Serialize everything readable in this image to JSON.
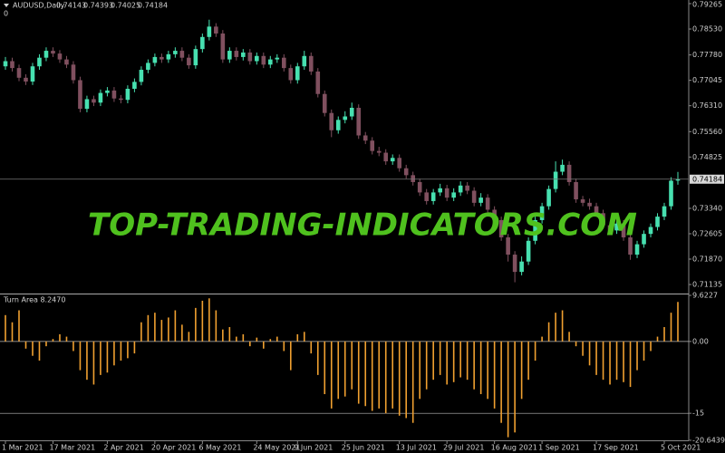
{
  "chart_data": [
    {
      "type": "candlestick",
      "title": "AUDUSD,Daily",
      "sub_label": "0",
      "watermark": "TOP-TRADING-INDICATORS.COM",
      "current_price": 0.74184,
      "ylim": [
        0.709,
        0.7937
      ],
      "yticks": [
        0.79265,
        {
          "value": 0.7853,
          "label": "0.78530"
        },
        {
          "value": 0.7778,
          "label": "0.77780"
        },
        0.77045,
        {
          "value": 0.7631,
          "label": "0.76310"
        },
        {
          "value": 0.7556,
          "label": "0.75560"
        },
        0.74825,
        {
          "value": 0.7334,
          "label": "0.73340"
        },
        0.72605,
        {
          "value": 0.7187,
          "label": "0.71870"
        },
        0.71135
      ],
      "series": [
        {
          "up_color": "#47e0b0",
          "down_color": "#80505f",
          "values": [
            [
              0.7745,
              0.7772,
              0.7735,
              0.776
            ],
            [
              0.776,
              0.777,
              0.773,
              0.774
            ],
            [
              0.774,
              0.775,
              0.7702,
              0.7712
            ],
            [
              0.7712,
              0.7722,
              0.7691,
              0.7701
            ],
            [
              0.7701,
              0.7755,
              0.7691,
              0.7745
            ],
            [
              0.7745,
              0.778,
              0.7735,
              0.777
            ],
            [
              0.777,
              0.78,
              0.776,
              0.779
            ],
            [
              0.779,
              0.78,
              0.7772,
              0.7782
            ],
            [
              0.7782,
              0.7792,
              0.7755,
              0.7765
            ],
            [
              0.7765,
              0.7775,
              0.774,
              0.775
            ],
            [
              0.775,
              0.776,
              0.7695,
              0.7705
            ],
            [
              0.7705,
              0.7715,
              0.7612,
              0.7622
            ],
            [
              0.7622,
              0.766,
              0.7612,
              0.765
            ],
            [
              0.765,
              0.766,
              0.763,
              0.764
            ],
            [
              0.764,
              0.7678,
              0.763,
              0.7668
            ],
            [
              0.7668,
              0.7685,
              0.7658,
              0.7675
            ],
            [
              0.7675,
              0.7685,
              0.7642,
              0.7652
            ],
            [
              0.7652,
              0.7662,
              0.7638,
              0.7648
            ],
            [
              0.7648,
              0.769,
              0.7638,
              0.768
            ],
            [
              0.768,
              0.771,
              0.767,
              0.77
            ],
            [
              0.77,
              0.7745,
              0.769,
              0.7735
            ],
            [
              0.7735,
              0.7765,
              0.7725,
              0.7755
            ],
            [
              0.7755,
              0.7782,
              0.7745,
              0.7772
            ],
            [
              0.7772,
              0.7782,
              0.7755,
              0.7765
            ],
            [
              0.7765,
              0.779,
              0.7755,
              0.778
            ],
            [
              0.778,
              0.78,
              0.777,
              0.779
            ],
            [
              0.779,
              0.78,
              0.776,
              0.777
            ],
            [
              0.777,
              0.778,
              0.7738,
              0.7748
            ],
            [
              0.7748,
              0.7805,
              0.7738,
              0.7795
            ],
            [
              0.7795,
              0.784,
              0.7785,
              0.783
            ],
            [
              0.783,
              0.788,
              0.782,
              0.786
            ],
            [
              0.786,
              0.787,
              0.783,
              0.784
            ],
            [
              0.784,
              0.785,
              0.7755,
              0.7765
            ],
            [
              0.7765,
              0.78,
              0.7755,
              0.779
            ],
            [
              0.779,
              0.78,
              0.7762,
              0.7772
            ],
            [
              0.7772,
              0.7795,
              0.7762,
              0.7785
            ],
            [
              0.7785,
              0.7795,
              0.775,
              0.776
            ],
            [
              0.776,
              0.7785,
              0.775,
              0.7775
            ],
            [
              0.7775,
              0.7785,
              0.774,
              0.775
            ],
            [
              0.775,
              0.7775,
              0.774,
              0.7765
            ],
            [
              0.7765,
              0.778,
              0.7755,
              0.777
            ],
            [
              0.777,
              0.778,
              0.773,
              0.774
            ],
            [
              0.774,
              0.775,
              0.7695,
              0.7705
            ],
            [
              0.7705,
              0.7755,
              0.7695,
              0.7745
            ],
            [
              0.7745,
              0.779,
              0.7735,
              0.7775
            ],
            [
              0.7775,
              0.7785,
              0.772,
              0.773
            ],
            [
              0.773,
              0.774,
              0.7655,
              0.7665
            ],
            [
              0.7665,
              0.7675,
              0.76,
              0.761
            ],
            [
              0.761,
              0.762,
              0.754,
              0.756
            ],
            [
              0.756,
              0.76,
              0.755,
              0.759
            ],
            [
              0.759,
              0.7615,
              0.758,
              0.76
            ],
            [
              0.76,
              0.764,
              0.759,
              0.7625
            ],
            [
              0.7625,
              0.7635,
              0.7535,
              0.7545
            ],
            [
              0.7545,
              0.7555,
              0.752,
              0.753
            ],
            [
              0.753,
              0.754,
              0.749,
              0.75
            ],
            [
              0.75,
              0.7512,
              0.7485,
              0.7495
            ],
            [
              0.7495,
              0.7505,
              0.746,
              0.747
            ],
            [
              0.747,
              0.749,
              0.746,
              0.748
            ],
            [
              0.748,
              0.749,
              0.744,
              0.745
            ],
            [
              0.745,
              0.746,
              0.742,
              0.743
            ],
            [
              0.743,
              0.744,
              0.74,
              0.741
            ],
            [
              0.741,
              0.742,
              0.737,
              0.738
            ],
            [
              0.738,
              0.739,
              0.7345,
              0.7355
            ],
            [
              0.7355,
              0.739,
              0.7345,
              0.738
            ],
            [
              0.738,
              0.7405,
              0.737,
              0.7392
            ],
            [
              0.7392,
              0.7402,
              0.7355,
              0.7365
            ],
            [
              0.7365,
              0.7392,
              0.7355,
              0.738
            ],
            [
              0.738,
              0.7412,
              0.737,
              0.74
            ],
            [
              0.74,
              0.741,
              0.7375,
              0.7385
            ],
            [
              0.7385,
              0.7395,
              0.734,
              0.735
            ],
            [
              0.735,
              0.7378,
              0.734,
              0.7365
            ],
            [
              0.7365,
              0.7375,
              0.732,
              0.733
            ],
            [
              0.733,
              0.734,
              0.729,
              0.73
            ],
            [
              0.73,
              0.731,
              0.724,
              0.725
            ],
            [
              0.725,
              0.726,
              0.718,
              0.72
            ],
            [
              0.72,
              0.721,
              0.712,
              0.715
            ],
            [
              0.715,
              0.7195,
              0.714,
              0.718
            ],
            [
              0.718,
              0.725,
              0.717,
              0.724
            ],
            [
              0.724,
              0.731,
              0.723,
              0.73
            ],
            [
              0.73,
              0.735,
              0.729,
              0.734
            ],
            [
              0.734,
              0.74,
              0.733,
              0.739
            ],
            [
              0.739,
              0.747,
              0.738,
              0.744
            ],
            [
              0.744,
              0.7475,
              0.743,
              0.746
            ],
            [
              0.746,
              0.747,
              0.74,
              0.741
            ],
            [
              0.741,
              0.742,
              0.735,
              0.736
            ],
            [
              0.736,
              0.737,
              0.734,
              0.735
            ],
            [
              0.735,
              0.7362,
              0.733,
              0.734
            ],
            [
              0.734,
              0.735,
              0.731,
              0.732
            ],
            [
              0.732,
              0.733,
              0.7275,
              0.7285
            ],
            [
              0.7285,
              0.7295,
              0.726,
              0.727
            ],
            [
              0.727,
              0.73,
              0.726,
              0.729
            ],
            [
              0.729,
              0.73,
              0.724,
              0.725
            ],
            [
              0.725,
              0.726,
              0.7185,
              0.72
            ],
            [
              0.72,
              0.724,
              0.719,
              0.723
            ],
            [
              0.723,
              0.727,
              0.722,
              0.726
            ],
            [
              0.726,
              0.729,
              0.725,
              0.728
            ],
            [
              0.728,
              0.732,
              0.727,
              0.731
            ],
            [
              0.731,
              0.735,
              0.73,
              0.734
            ],
            [
              0.734,
              0.7424,
              0.733,
              0.7414
            ],
            [
              0.74143,
              0.74393,
              0.74025,
              0.74184
            ]
          ]
        }
      ]
    },
    {
      "type": "bar",
      "title": "Turn Area 8.2470",
      "color": "#f0a030",
      "ylim": [
        -20.6439,
        9.6227
      ],
      "yticks": [
        9.6227,
        {
          "value": 0,
          "label": "0.00"
        },
        -15,
        -20.6439
      ],
      "levels": [
        0,
        -15
      ],
      "categories": [
        "1 Mar 2021",
        null,
        null,
        null,
        null,
        null,
        null,
        "17 Mar 2021",
        null,
        null,
        null,
        null,
        null,
        null,
        null,
        "2 Apr 2021",
        null,
        null,
        null,
        null,
        null,
        null,
        "20 Apr 2021",
        null,
        null,
        null,
        null,
        null,
        null,
        "6 May 2021",
        null,
        null,
        null,
        null,
        null,
        null,
        null,
        "24 May 2021",
        null,
        null,
        null,
        null,
        null,
        "9 Jun 2021",
        null,
        null,
        null,
        null,
        null,
        null,
        "25 Jun 2021",
        null,
        null,
        null,
        null,
        null,
        null,
        null,
        "13 Jul 2021",
        null,
        null,
        null,
        null,
        null,
        null,
        "29 Jul 2021",
        null,
        null,
        null,
        null,
        null,
        null,
        "16 Aug 2021",
        null,
        null,
        null,
        null,
        null,
        null,
        "1 Sep 2021",
        null,
        null,
        null,
        null,
        null,
        null,
        null,
        "17 Sep 2021",
        null,
        null,
        null,
        null,
        null,
        null,
        null,
        null,
        null,
        "5 Oct 2021",
        null,
        null
      ],
      "values": [
        5.5,
        4,
        6.5,
        -1.5,
        -3,
        -4,
        -1,
        0.5,
        1.5,
        1,
        -2,
        -6,
        -8,
        -9,
        -7,
        -6.5,
        -5,
        -4,
        -3.5,
        -2.5,
        4,
        5.5,
        6,
        4.5,
        5,
        6.5,
        3.5,
        2,
        7,
        8.5,
        9,
        6.5,
        2.5,
        3,
        1,
        1.5,
        -1,
        0.8,
        -1.5,
        0.5,
        1,
        -2,
        -6,
        1.5,
        2,
        -2.5,
        -7,
        -11,
        -14,
        -12,
        -11.5,
        -10,
        -13,
        -13.5,
        -14.5,
        -14,
        -15,
        -14,
        -15.5,
        -16,
        -17,
        -12,
        -10,
        -8,
        -7,
        -9,
        -8.5,
        -7.5,
        -8,
        -10,
        -11,
        -12,
        -14,
        -17,
        -20,
        -19,
        -12,
        -8,
        -4,
        1,
        4,
        6,
        6.5,
        2,
        -1,
        -3,
        -5,
        -7,
        -8,
        -9,
        -8,
        -8.5,
        -9.5,
        -6,
        -4,
        -2,
        1,
        3,
        6,
        8.247
      ]
    }
  ]
}
